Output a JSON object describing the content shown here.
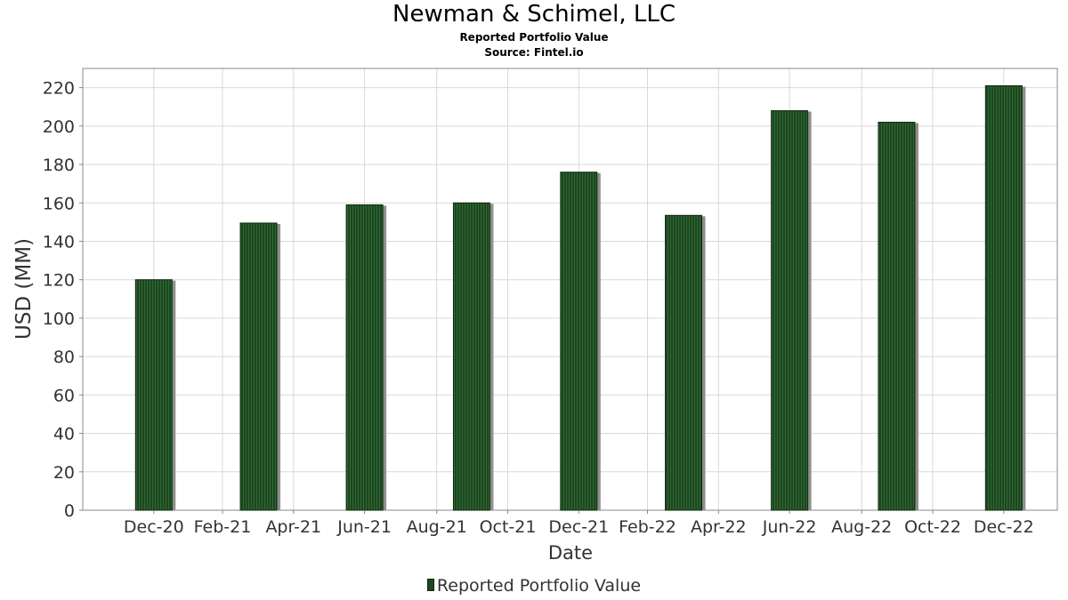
{
  "chart_data": {
    "type": "bar",
    "title": "Newman & Schimel, LLC",
    "subtitles": [
      "Reported Portfolio Value",
      "Source: Fintel.io"
    ],
    "xlabel": "Date",
    "ylabel": "USD (MM)",
    "ylim": [
      0,
      230
    ],
    "y_ticks": [
      0,
      20,
      40,
      60,
      80,
      100,
      120,
      140,
      160,
      180,
      200,
      220
    ],
    "x_ticks": [
      "Dec-20",
      "Feb-21",
      "Apr-21",
      "Jun-21",
      "Aug-21",
      "Oct-21",
      "Dec-21",
      "Feb-22",
      "Apr-22",
      "Jun-22",
      "Aug-22",
      "Oct-22",
      "Dec-22"
    ],
    "x": [
      "2020-12-31",
      "2021-03-31",
      "2021-06-30",
      "2021-09-30",
      "2021-12-31",
      "2022-03-31",
      "2022-06-30",
      "2022-09-30",
      "2022-12-31"
    ],
    "series": [
      {
        "name": "Reported Portfolio Value",
        "values": [
          120,
          149.5,
          159,
          160,
          176,
          153.5,
          208,
          202,
          221
        ]
      }
    ],
    "grid": true,
    "legend_position": "bottom"
  },
  "colors": {
    "bar_fill": "#1e4620",
    "bar_stripe": "#2f6a33",
    "bar_shadow": "#8f8f8f",
    "grid": "#d9d9d9",
    "axis": "#888888"
  }
}
